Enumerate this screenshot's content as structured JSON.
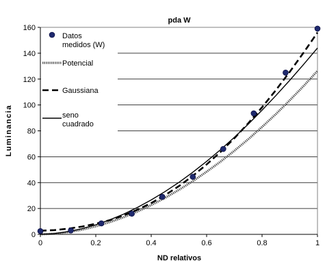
{
  "chart_data": {
    "type": "scatter",
    "title": "pda W",
    "xlabel": "ND relativos",
    "ylabel": "Luminancia",
    "xlim": [
      0,
      1
    ],
    "ylim": [
      0,
      160
    ],
    "xticks": [
      "0",
      "0.2",
      "0.4",
      "0.6",
      "0.8",
      "1"
    ],
    "yticks": [
      "0",
      "20",
      "40",
      "60",
      "80",
      "100",
      "120",
      "140",
      "160"
    ],
    "grid": "horizontal",
    "legend_position": "left",
    "series": [
      {
        "name": "Datos medidos (W)",
        "kind": "markers",
        "color": "#1f2a6e",
        "x": [
          0,
          0.11,
          0.22,
          0.33,
          0.44,
          0.55,
          0.66,
          0.77,
          0.885,
          1.0
        ],
        "y": [
          2.5,
          3,
          8.5,
          16,
          29,
          44.5,
          66,
          93.5,
          125,
          159
        ]
      },
      {
        "name": "Potencial",
        "kind": "line",
        "style": "dotted-thick",
        "color": "#555555",
        "x": [
          0,
          0.05,
          0.1,
          0.15,
          0.2,
          0.25,
          0.3,
          0.35,
          0.4,
          0.45,
          0.5,
          0.55,
          0.6,
          0.65,
          0.7,
          0.75,
          0.8,
          0.85,
          0.9,
          0.95,
          1.0
        ],
        "y": [
          0.0,
          0.5,
          1.7,
          3.6,
          6.2,
          9.4,
          13.2,
          17.6,
          22.6,
          28.2,
          34.4,
          41.1,
          48.4,
          56.2,
          64.6,
          73.5,
          83.0,
          93.0,
          103.6,
          114.7,
          126.3
        ]
      },
      {
        "name": "Gaussiana",
        "kind": "line",
        "style": "dashed",
        "color": "#000000",
        "x": [
          0,
          0.05,
          0.1,
          0.15,
          0.2,
          0.25,
          0.3,
          0.35,
          0.4,
          0.45,
          0.5,
          0.55,
          0.6,
          0.65,
          0.7,
          0.75,
          0.8,
          0.85,
          0.9,
          0.95,
          1.0
        ],
        "y": [
          2.8,
          3.3,
          4.4,
          6.0,
          8.2,
          11.0,
          14.6,
          19.0,
          24.2,
          30.3,
          37.3,
          45.2,
          54.0,
          63.7,
          74.3,
          85.8,
          98.2,
          111.5,
          125.6,
          140.5,
          156.0
        ]
      },
      {
        "name": "seno cuadrado",
        "kind": "line",
        "style": "solid",
        "color": "#000000",
        "x": [
          0,
          0.05,
          0.1,
          0.15,
          0.2,
          0.25,
          0.3,
          0.35,
          0.4,
          0.45,
          0.5,
          0.55,
          0.6,
          0.65,
          0.7,
          0.75,
          0.8,
          0.85,
          0.9,
          0.95,
          1.0
        ],
        "y": [
          0.0,
          0.6,
          2.1,
          4.4,
          7.4,
          11.2,
          15.6,
          20.8,
          26.6,
          33.1,
          40.2,
          48.0,
          56.4,
          65.4,
          75.0,
          85.2,
          96.0,
          107.3,
          119.1,
          131.4,
          144.0
        ]
      }
    ]
  }
}
